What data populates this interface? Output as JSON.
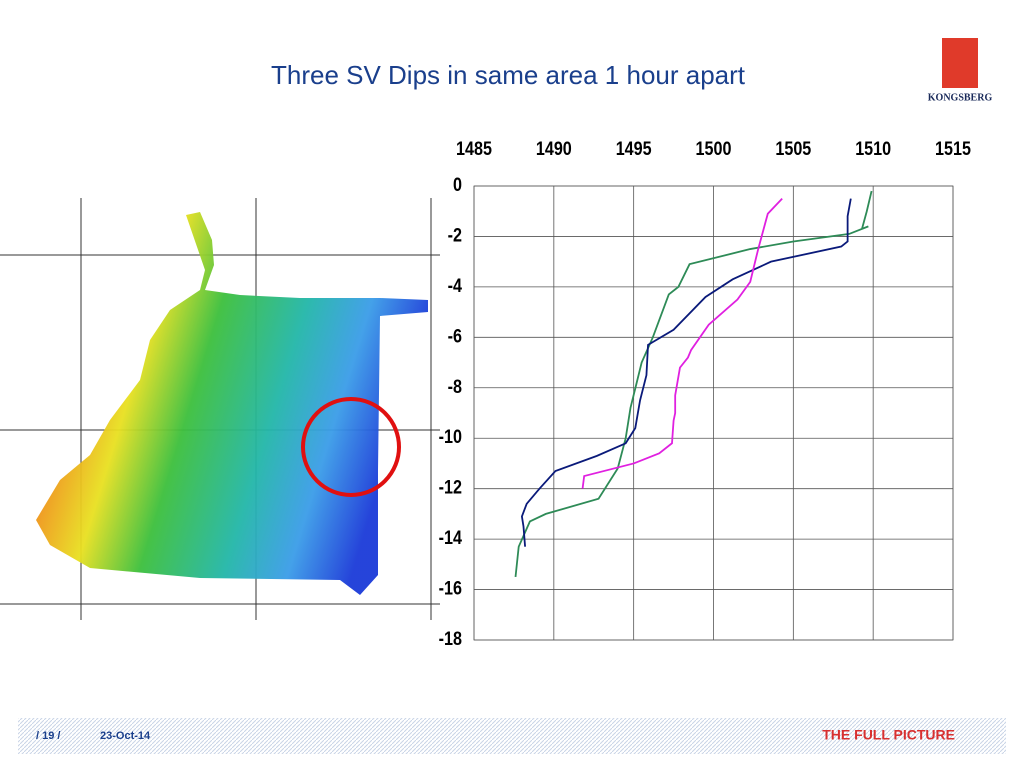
{
  "chart_data": {
    "type": "line",
    "title": "Three SV Dips in same area 1 hour apart",
    "xlim": [
      1485,
      1515
    ],
    "xticks": [
      1485,
      1490,
      1495,
      1500,
      1505,
      1510,
      1515
    ],
    "ylim": [
      -18,
      0
    ],
    "yticks": [
      0,
      -2,
      -4,
      -6,
      -8,
      -10,
      -12,
      -14,
      -16,
      -18
    ],
    "grid": true,
    "series": [
      {
        "color": "#2e8b57",
        "x": [
          1509.9,
          1509.6,
          1509.3,
          1509.7,
          1508.5,
          1505,
          1502.3,
          1498.5,
          1497.8,
          1497.2,
          1496.2,
          1495.5,
          1494.8,
          1494.5,
          1494,
          1492.8,
          1489.5,
          1488.5,
          1487.8,
          1487.6
        ],
        "values": [
          -0.2,
          -1.0,
          -1.7,
          -1.6,
          -1.9,
          -2.2,
          -2.5,
          -3.1,
          -4.0,
          -4.3,
          -6.0,
          -7.0,
          -8.8,
          -10.0,
          -11.2,
          -12.4,
          -13.0,
          -13.3,
          -14.3,
          -15.5
        ]
      },
      {
        "color": "#0a1a7a",
        "x": [
          1508.6,
          1508.4,
          1508.4,
          1508,
          1503.6,
          1501.2,
          1499.5,
          1497.5,
          1495.9,
          1495.8,
          1495.4,
          1495.1,
          1494.5,
          1492.7,
          1490.1,
          1489.1,
          1488.3,
          1488,
          1488.1,
          1488.2
        ],
        "values": [
          -0.5,
          -1.2,
          -2.2,
          -2.4,
          -3.0,
          -3.7,
          -4.4,
          -5.7,
          -6.3,
          -7.5,
          -8.5,
          -9.6,
          -10.2,
          -10.7,
          -11.3,
          -12,
          -12.6,
          -13.1,
          -13.5,
          -14.3
        ]
      },
      {
        "color": "#e020e0",
        "x": [
          1504.3,
          1503.4,
          1503.1,
          1502.8,
          1502.3,
          1501.5,
          1499.7,
          1498.6,
          1498.4,
          1497.9,
          1497.6,
          1497.6,
          1497.5,
          1497.4,
          1496.6,
          1495,
          1491.9,
          1491.8
        ],
        "values": [
          -0.5,
          -1.1,
          -1.8,
          -2.5,
          -3.8,
          -4.5,
          -5.5,
          -6.5,
          -6.8,
          -7.2,
          -8.3,
          -9.0,
          -9.3,
          -10.2,
          -10.6,
          -11.0,
          -11.5,
          -12.0
        ]
      }
    ]
  },
  "logo": {
    "text": "KONGSBERG"
  },
  "footer": {
    "page": "/ 19 /",
    "date": "23-Oct-14",
    "tagline": "THE FULL PICTURE"
  }
}
